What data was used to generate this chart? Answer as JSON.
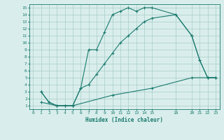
{
  "title": "",
  "xlabel": "Humidex (Indice chaleur)",
  "ylabel": "",
  "xlim": [
    -0.5,
    23.5
  ],
  "ylim": [
    0.5,
    15.5
  ],
  "xticks": [
    0,
    1,
    2,
    3,
    4,
    5,
    6,
    7,
    8,
    9,
    10,
    11,
    12,
    13,
    14,
    15,
    18,
    20,
    21,
    22,
    23
  ],
  "yticks": [
    1,
    2,
    3,
    4,
    5,
    6,
    7,
    8,
    9,
    10,
    11,
    12,
    13,
    14,
    15
  ],
  "line_color": "#1a7a6e",
  "bg_color": "#d9eeec",
  "grid_color": "#a8ccc8",
  "lines": [
    {
      "x": [
        1,
        2,
        3,
        4,
        5,
        6,
        7,
        8,
        9,
        10,
        11,
        12,
        13,
        14,
        15,
        18,
        20,
        21,
        22,
        23
      ],
      "y": [
        3,
        1.5,
        1,
        1,
        1,
        3.5,
        9,
        9,
        11.5,
        14,
        14.5,
        15,
        14.5,
        15,
        15,
        14,
        11,
        7.5,
        5,
        5
      ]
    },
    {
      "x": [
        1,
        2,
        3,
        4,
        5,
        6,
        7,
        8,
        9,
        10,
        11,
        12,
        13,
        14,
        15,
        18,
        20,
        21,
        22,
        23
      ],
      "y": [
        3,
        1.5,
        1,
        1,
        1,
        3.5,
        4,
        5.5,
        7,
        8.5,
        10,
        11,
        12,
        13,
        13.5,
        14,
        11,
        7.5,
        5,
        5
      ]
    },
    {
      "x": [
        1,
        3,
        5,
        10,
        15,
        20,
        22,
        23
      ],
      "y": [
        1.5,
        1,
        1,
        2.5,
        3.5,
        5,
        5,
        5
      ]
    }
  ]
}
